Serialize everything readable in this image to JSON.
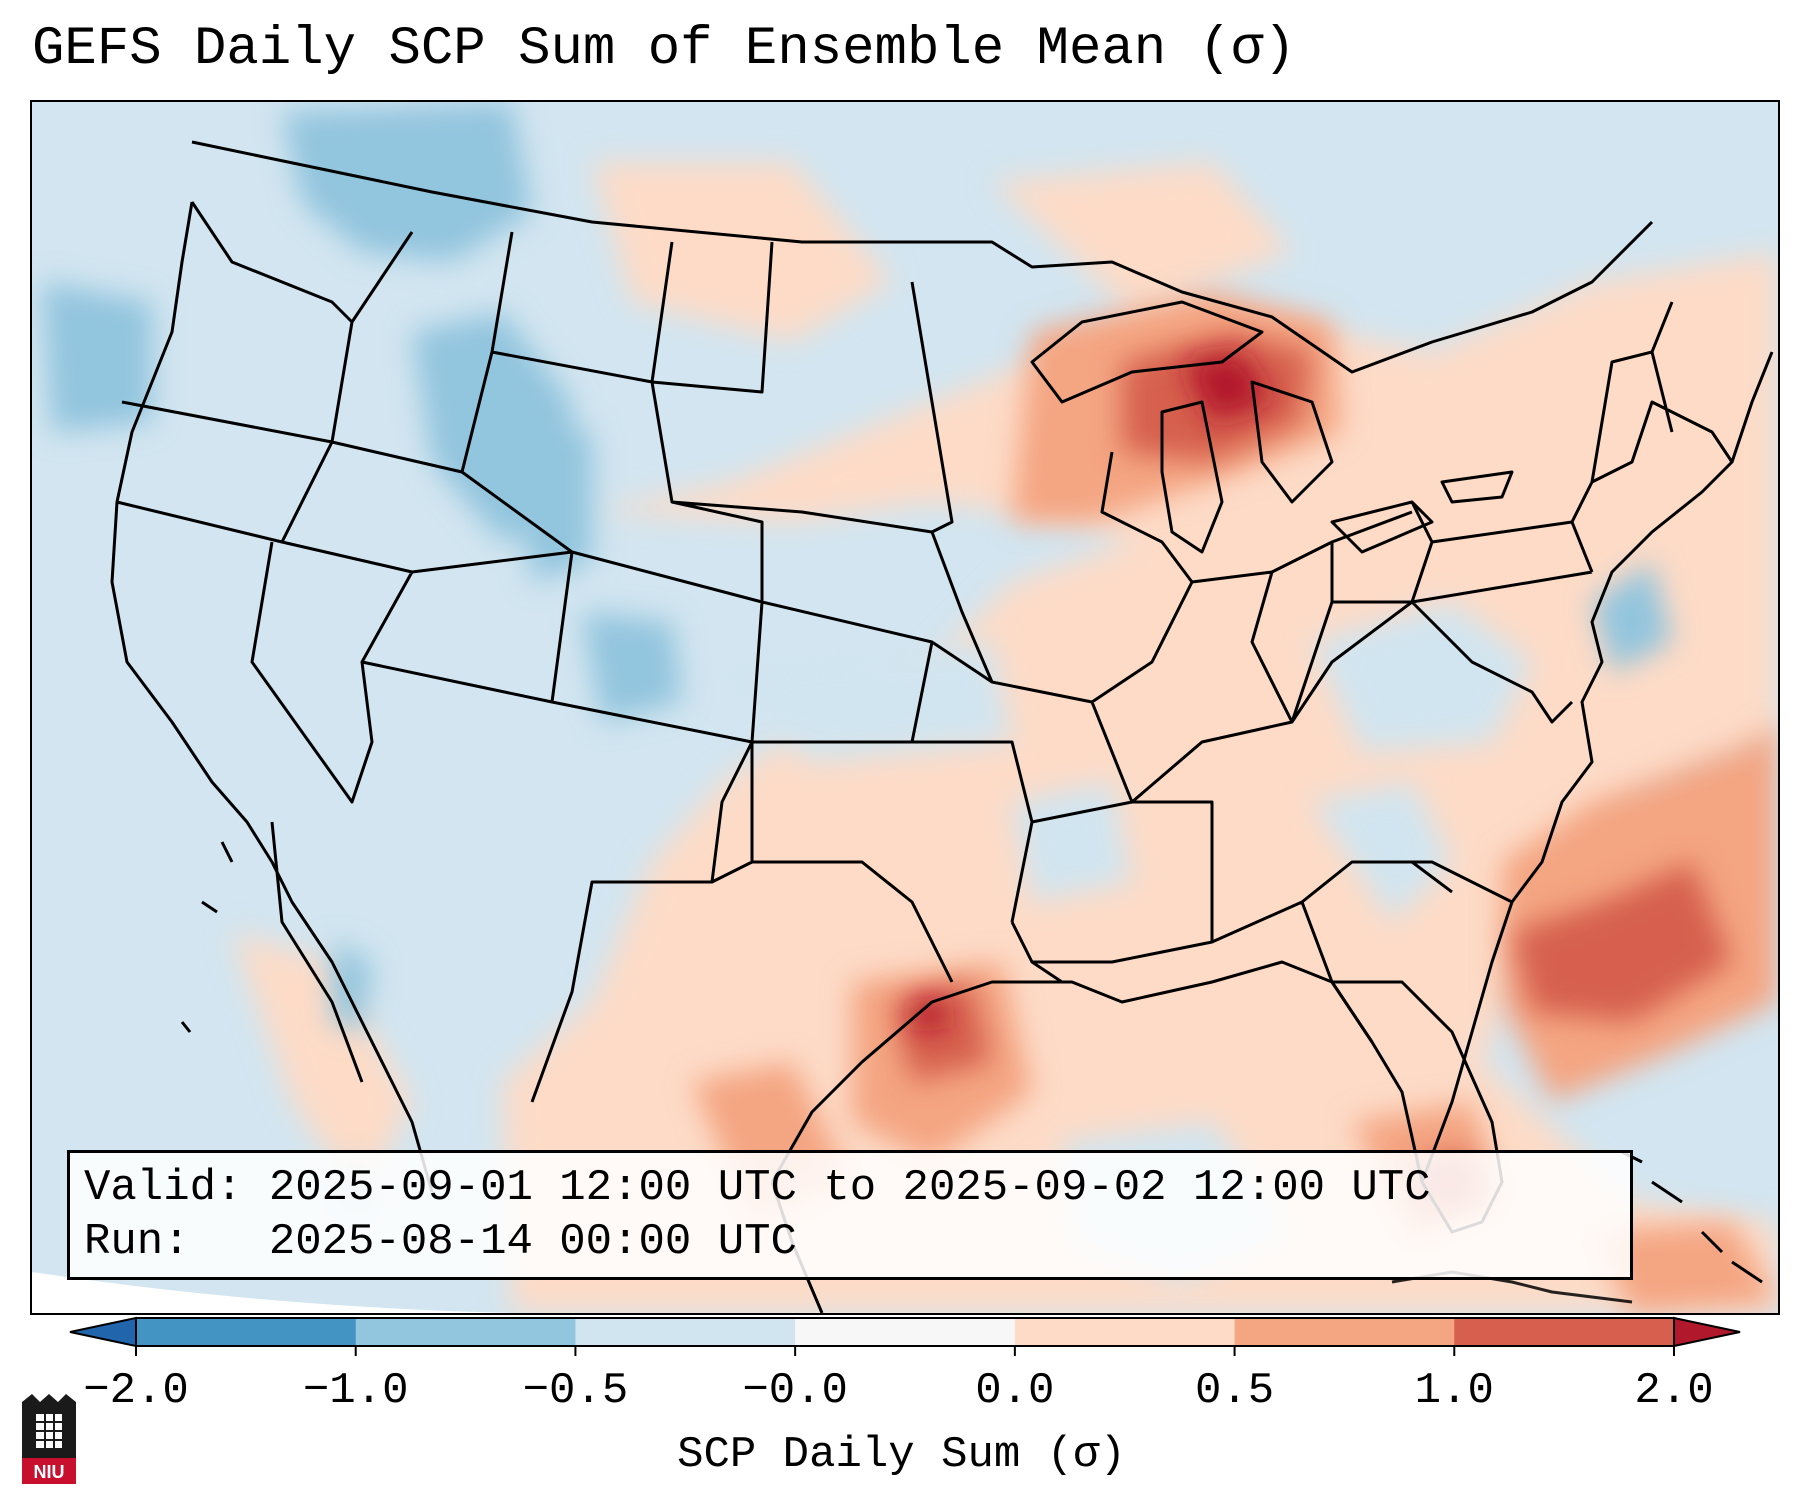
{
  "title": "GEFS Daily SCP Sum of Ensemble Mean (σ)",
  "info": {
    "valid": "Valid: 2025-09-01 12:00 UTC to 2025-09-02 12:00 UTC",
    "run": "Run:   2025-08-14 00:00 UTC"
  },
  "colorbar": {
    "label": "SCP Daily Sum (σ)",
    "ticks": [
      "−2.0",
      "−1.0",
      "−0.5",
      "−0.0",
      "0.0",
      "0.5",
      "1.0",
      "2.0"
    ],
    "bins": [
      {
        "name": "below -2.0",
        "color": "#2166ac"
      },
      {
        "name": "-2.0 to -1.0",
        "color": "#4393c3"
      },
      {
        "name": "-1.0 to -0.5",
        "color": "#92c5de"
      },
      {
        "name": "-0.5 to -0.0",
        "color": "#d1e5f0"
      },
      {
        "name": "-0.0 to 0.0",
        "color": "#f7f7f7"
      },
      {
        "name": "0.0 to 0.5",
        "color": "#fddbc7"
      },
      {
        "name": "0.5 to 1.0",
        "color": "#f4a582"
      },
      {
        "name": "1.0 to 2.0",
        "color": "#d6604d"
      },
      {
        "name": "above 2.0",
        "color": "#b2182b"
      }
    ]
  },
  "logo": {
    "text": "NIU"
  }
}
